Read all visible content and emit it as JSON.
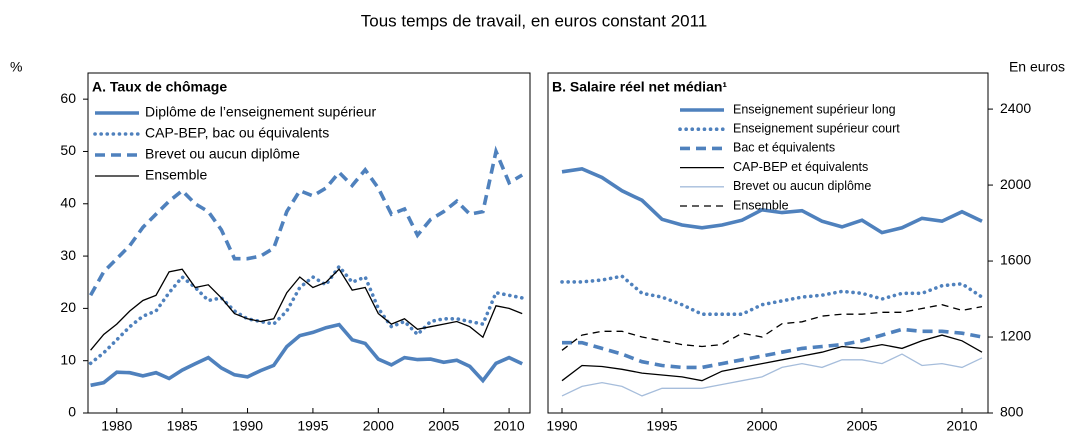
{
  "title": "Tous temps de travail, en euros constant 2011",
  "chart_data": [
    {
      "type": "line",
      "title": "A. Taux de chômage",
      "ylabel": "%",
      "yaxis_side": "left",
      "legend": "upper left",
      "x": [
        1978,
        1979,
        1980,
        1981,
        1982,
        1983,
        1984,
        1985,
        1986,
        1987,
        1988,
        1989,
        1990,
        1991,
        1992,
        1993,
        1994,
        1995,
        1996,
        1997,
        1998,
        1999,
        2000,
        2001,
        2002,
        2003,
        2004,
        2005,
        2006,
        2007,
        2008,
        2009,
        2010,
        2011
      ],
      "xlim": [
        1977.8,
        2011.6
      ],
      "xticks": [
        1980,
        1985,
        1990,
        1995,
        2000,
        2005,
        2010
      ],
      "ylim": [
        0,
        65
      ],
      "yticks": [
        0,
        10,
        20,
        30,
        40,
        50,
        60
      ],
      "series": [
        {
          "name": "Diplôme de l’enseignement supérieur",
          "color": "#4f81bd",
          "style": "solid",
          "width": "thick",
          "values": [
            5.3,
            5.8,
            7.8,
            7.7,
            7.1,
            7.7,
            6.6,
            8.2,
            9.4,
            10.6,
            8.6,
            7.3,
            6.9,
            8.1,
            9.1,
            12.7,
            14.8,
            15.4,
            16.3,
            16.9,
            14.0,
            13.3,
            10.3,
            9.2,
            10.6,
            10.2,
            10.3,
            9.7,
            10.1,
            8.9,
            6.2,
            9.5,
            10.6,
            9.4
          ]
        },
        {
          "name": "CAP-BEP, bac ou équivalents",
          "color": "#4f81bd",
          "style": "dotted",
          "width": "thick",
          "values": [
            9.5,
            11.5,
            14,
            16.5,
            18.5,
            19.5,
            23,
            26,
            24,
            21.5,
            22,
            19.5,
            18,
            17.5,
            17,
            19.5,
            24,
            26,
            24.5,
            28,
            25,
            26,
            20,
            16.5,
            17.5,
            15,
            17.5,
            18,
            18,
            17.5,
            17,
            23,
            22.5,
            22
          ]
        },
        {
          "name": "Brevet ou aucun diplôme",
          "color": "#4f81bd",
          "style": "dashed",
          "width": "thick",
          "values": [
            22.5,
            27,
            29.5,
            32,
            35.5,
            38,
            40.5,
            42.5,
            40,
            38.5,
            35,
            29.5,
            29.5,
            30,
            31.5,
            38.5,
            42.5,
            41.5,
            43,
            46,
            43.5,
            46.5,
            43,
            38,
            39,
            34,
            37,
            38.5,
            40.5,
            38,
            38.5,
            50,
            44,
            45.5
          ]
        },
        {
          "name": "Ensemble",
          "color": "#000000",
          "style": "solid",
          "width": "thin",
          "values": [
            12,
            15,
            17,
            19.5,
            21.5,
            22.5,
            27,
            27.5,
            24,
            24.5,
            22,
            19,
            18,
            17.5,
            18,
            23,
            26,
            24,
            25,
            27.5,
            23.5,
            24,
            19,
            17,
            18,
            16,
            16.5,
            17,
            17.5,
            16.5,
            14.5,
            20.5,
            20,
            19
          ]
        }
      ]
    },
    {
      "type": "line",
      "title": "B. Salaire réel net médian¹",
      "ylabel": "En euros",
      "yaxis_side": "right",
      "legend": "upper center",
      "x": [
        1990,
        1991,
        1992,
        1993,
        1994,
        1995,
        1996,
        1997,
        1998,
        1999,
        2000,
        2001,
        2002,
        2003,
        2004,
        2005,
        2006,
        2007,
        2008,
        2009,
        2010,
        2011
      ],
      "xlim": [
        1989.3,
        2011.3
      ],
      "xticks": [
        1990,
        1995,
        2000,
        2005,
        2010
      ],
      "ylim": [
        800,
        2590
      ],
      "yticks": [
        800,
        1200,
        1600,
        2000,
        2400
      ],
      "series": [
        {
          "name": "Enseignement supérieur long",
          "color": "#4f81bd",
          "style": "solid",
          "width": "thick",
          "values": [
            2070,
            2085,
            2040,
            1970,
            1920,
            1820,
            1790,
            1775,
            1790,
            1815,
            1870,
            1855,
            1865,
            1810,
            1780,
            1815,
            1750,
            1775,
            1825,
            1810,
            1860,
            1810
          ]
        },
        {
          "name": "Enseignement supérieur court",
          "color": "#4f81bd",
          "style": "dotted",
          "width": "thick",
          "values": [
            1490,
            1490,
            1500,
            1520,
            1430,
            1410,
            1370,
            1320,
            1320,
            1320,
            1370,
            1390,
            1410,
            1420,
            1440,
            1430,
            1400,
            1430,
            1430,
            1470,
            1480,
            1410
          ]
        },
        {
          "name": "Bac et équivalents",
          "color": "#4f81bd",
          "style": "dashed",
          "width": "thick",
          "values": [
            1170,
            1170,
            1140,
            1110,
            1070,
            1050,
            1040,
            1040,
            1060,
            1080,
            1100,
            1120,
            1140,
            1150,
            1160,
            1180,
            1210,
            1240,
            1230,
            1230,
            1220,
            1200
          ]
        },
        {
          "name": "CAP-BEP et équivalents",
          "color": "#000000",
          "style": "solid",
          "width": "thin",
          "values": [
            970,
            1050,
            1045,
            1030,
            1010,
            1000,
            990,
            970,
            1020,
            1040,
            1060,
            1080,
            1100,
            1120,
            1150,
            1140,
            1160,
            1140,
            1180,
            1210,
            1180,
            1120
          ]
        },
        {
          "name": "Brevet ou aucun diplôme",
          "color": "#a6bddb",
          "style": "solid",
          "width": "thin",
          "values": [
            890,
            940,
            960,
            940,
            890,
            930,
            930,
            930,
            950,
            970,
            990,
            1040,
            1060,
            1040,
            1080,
            1080,
            1060,
            1110,
            1050,
            1060,
            1040,
            1090
          ]
        },
        {
          "name": "Ensemble",
          "color": "#000000",
          "style": "dashed",
          "width": "thin",
          "values": [
            1130,
            1210,
            1230,
            1230,
            1200,
            1180,
            1160,
            1150,
            1160,
            1220,
            1200,
            1270,
            1280,
            1310,
            1320,
            1320,
            1330,
            1330,
            1350,
            1370,
            1340,
            1360
          ]
        }
      ]
    }
  ]
}
